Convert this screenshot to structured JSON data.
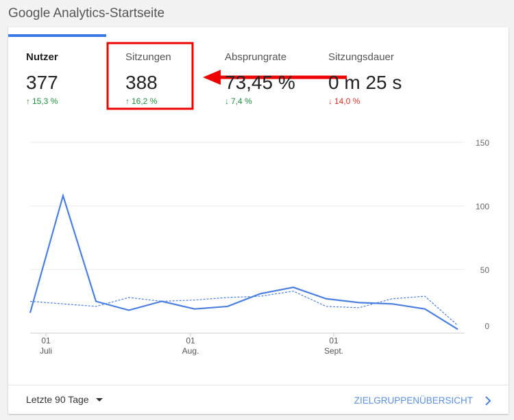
{
  "header": {
    "title": "Google Analytics-Startseite"
  },
  "metrics": [
    {
      "label": "Nutzer",
      "value": "377",
      "change": "15,3 %"
    },
    {
      "label": "Sitzungen",
      "value": "388",
      "change": "16,2 %"
    },
    {
      "label": "Absprungrate",
      "value": "73,45 %",
      "change": "7,4 %"
    },
    {
      "label": "Sitzungsdauer",
      "value": "0 m 25 s",
      "change": "14,0 %"
    }
  ],
  "chart_data": {
    "type": "line",
    "categories": [
      null,
      null,
      null,
      null,
      null,
      null,
      null,
      null,
      null,
      null,
      null,
      null,
      null,
      null
    ],
    "series": [
      {
        "color": "#4a7fe0",
        "values": [
          16,
          108,
          25,
          18,
          25,
          19,
          21,
          31,
          36,
          27,
          24,
          23,
          19,
          3
        ]
      },
      {
        "color": "#4a7fe0",
        "dashed": true,
        "values": [
          25,
          23,
          21,
          28,
          25,
          26,
          28,
          29,
          33,
          21,
          20,
          27,
          29,
          6
        ]
      }
    ],
    "ylim": [
      0,
      150
    ],
    "yticks": [
      0,
      50,
      100,
      150
    ],
    "grid": true,
    "xtick_labels": [
      {
        "day": "01",
        "month": "Juli"
      },
      {
        "day": "01",
        "month": "Aug."
      },
      {
        "day": "01",
        "month": "Sept."
      }
    ]
  },
  "footer": {
    "range": "Letzte 90 Tage",
    "link": "ZIELGRUPPENÜBERSICHT"
  }
}
